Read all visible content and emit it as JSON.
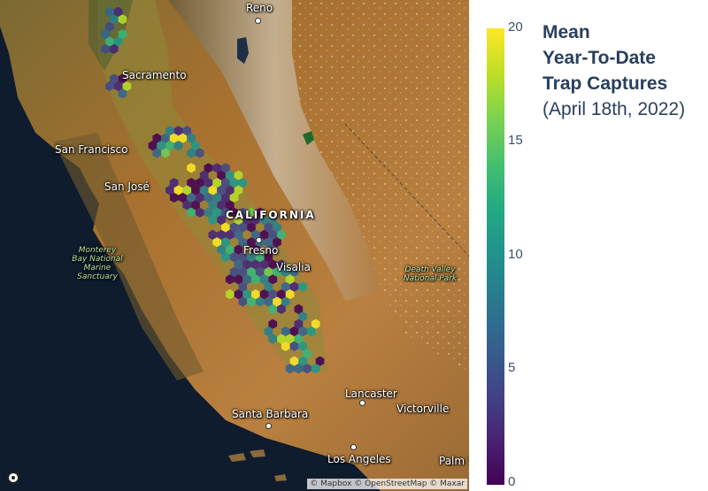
{
  "map": {
    "places": [
      {
        "label": "Reno",
        "type": "city"
      },
      {
        "label": "Sacramento",
        "type": "city"
      },
      {
        "label": "San Francisco",
        "type": "city"
      },
      {
        "label": "San José",
        "type": "city"
      },
      {
        "label": "CALIFORNIA",
        "type": "state"
      },
      {
        "label": "Fresno",
        "type": "city"
      },
      {
        "label": "Visalia",
        "type": "city"
      },
      {
        "label": "Monterey Bay National Marine Sanctuary",
        "type": "park"
      },
      {
        "label": "Death Valley National Park",
        "type": "park"
      },
      {
        "label": "Lancaster",
        "type": "city"
      },
      {
        "label": "Victorville",
        "type": "city"
      },
      {
        "label": "Santa Barbara",
        "type": "city"
      },
      {
        "label": "Los Angeles",
        "type": "city"
      },
      {
        "label": "Palm S",
        "type": "city"
      }
    ],
    "attribution": "© Mapbox © OpenStreetMap © Maxar",
    "logo_icon": "mapbox-logo-icon"
  },
  "legend": {
    "title_lines": [
      "Mean",
      "Year-To-Date",
      "Trap Captures"
    ],
    "subtitle": "(April 18th, 2022)",
    "ticks": [
      "20",
      "15",
      "10",
      "5",
      "0"
    ],
    "range": [
      0,
      20
    ],
    "colorscale": "viridis"
  },
  "colors": {
    "land": "#a36a2d",
    "ocean": "#0f1c2e",
    "legend_text": "#2a3f5f"
  }
}
